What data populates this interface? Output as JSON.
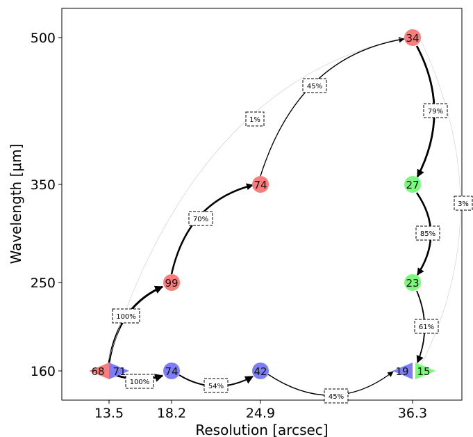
{
  "axes": {
    "xlabel": "Resolution [arcsec]",
    "ylabel": "Wavelength [μm]",
    "xticks": [
      "13.5",
      "18.2",
      "24.9",
      "36.3"
    ],
    "yticks": [
      "500",
      "350",
      "250",
      "160"
    ]
  },
  "colors": {
    "red": "#f87d7d",
    "green": "#7df87d",
    "blue": "#7d7df8"
  },
  "nodes": [
    {
      "id": "n-13.5-160-red",
      "label": "68",
      "color": "red",
      "shape": "triangle-left"
    },
    {
      "id": "n-13.5-160-blue",
      "label": "71",
      "color": "blue",
      "shape": "triangle-right"
    },
    {
      "id": "n-18.2-160",
      "label": "74",
      "color": "blue",
      "shape": "circle"
    },
    {
      "id": "n-24.9-160",
      "label": "42",
      "color": "blue",
      "shape": "circle"
    },
    {
      "id": "n-36.3-160-blue",
      "label": "19",
      "color": "blue",
      "shape": "triangle-left"
    },
    {
      "id": "n-36.3-160-green",
      "label": "15",
      "color": "green",
      "shape": "triangle-right"
    },
    {
      "id": "n-18.2-250",
      "label": "99",
      "color": "red",
      "shape": "circle"
    },
    {
      "id": "n-24.9-350",
      "label": "74",
      "color": "red",
      "shape": "circle"
    },
    {
      "id": "n-36.3-500",
      "label": "34",
      "color": "red",
      "shape": "circle"
    },
    {
      "id": "n-36.3-350",
      "label": "27",
      "color": "green",
      "shape": "circle"
    },
    {
      "id": "n-36.3-250",
      "label": "23",
      "color": "green",
      "shape": "circle"
    }
  ],
  "edges": [
    {
      "label": "100%"
    },
    {
      "label": "70%"
    },
    {
      "label": "45%"
    },
    {
      "label": "1%"
    },
    {
      "label": "79%"
    },
    {
      "label": "85%"
    },
    {
      "label": "61%"
    },
    {
      "label": "3%"
    },
    {
      "label": "100%"
    },
    {
      "label": "54%"
    },
    {
      "label": "45%"
    }
  ]
}
